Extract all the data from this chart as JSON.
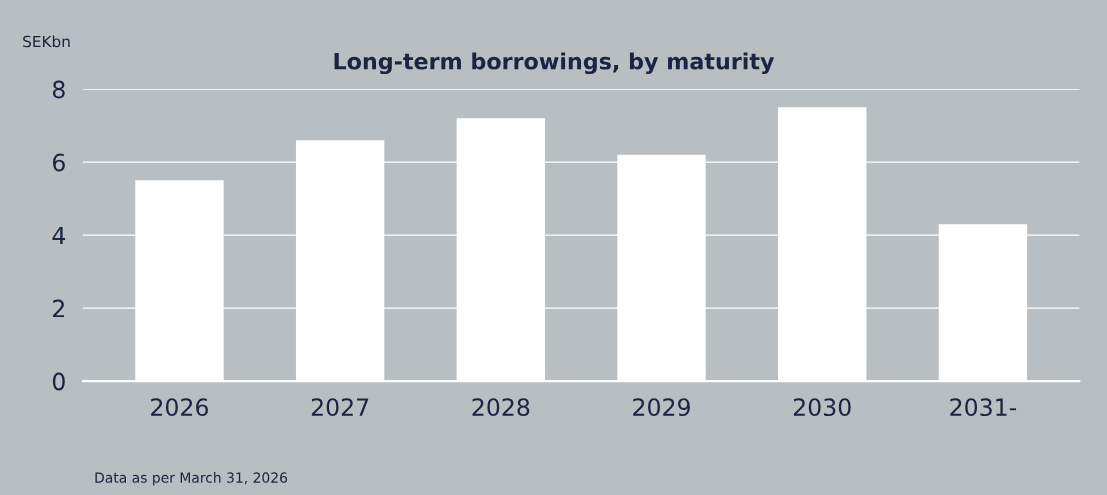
{
  "chart_data": {
    "type": "bar",
    "title": "Long-term borrowings, by maturity",
    "ylabel": "SEKbn",
    "categories": [
      "2026",
      "2027",
      "2028",
      "2029",
      "2030",
      "2031-"
    ],
    "values": [
      5.5,
      6.6,
      7.2,
      6.2,
      7.5,
      4.3
    ],
    "color": "#ffffff",
    "ylim": [
      0,
      8
    ],
    "yticks": [
      0,
      2,
      4,
      6,
      8
    ],
    "grid": "y",
    "annotations": [
      "Data as per March 31, 2026"
    ]
  }
}
